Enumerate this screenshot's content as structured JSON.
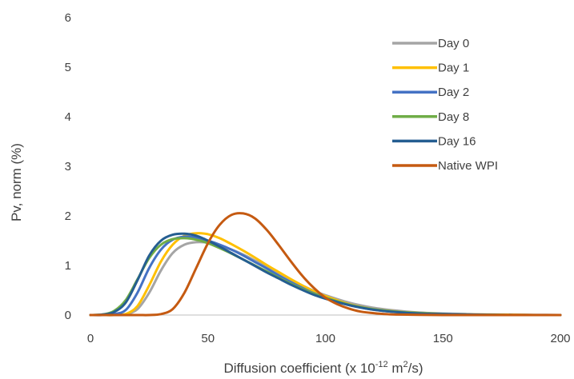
{
  "chart_data": {
    "type": "line",
    "xlabel": {
      "prefix": "Diffusion coefficient (x 10",
      "exp1": "-12",
      "mid": " m",
      "exp2": "2",
      "suffix": "/s)"
    },
    "ylabel": "Pv, norm (%)",
    "xlim": [
      0,
      200
    ],
    "ylim": [
      0,
      6
    ],
    "xticks": [
      0,
      50,
      100,
      150,
      200
    ],
    "yticks": [
      0,
      1,
      2,
      3,
      4,
      5,
      6
    ],
    "grid": false,
    "legend_position": "top-right",
    "series": [
      {
        "name": "Day 0",
        "color": "#A5A5A5",
        "x": [
          0,
          5,
          10,
          15,
          20,
          25,
          30,
          35,
          40,
          45,
          50,
          55,
          60,
          65,
          70,
          75,
          80,
          85,
          90,
          95,
          100,
          110,
          120,
          130,
          140,
          150,
          160,
          170,
          180,
          190,
          200
        ],
        "y": [
          0,
          0,
          0,
          0.02,
          0.12,
          0.45,
          0.9,
          1.25,
          1.42,
          1.47,
          1.46,
          1.4,
          1.32,
          1.22,
          1.1,
          0.98,
          0.85,
          0.72,
          0.6,
          0.49,
          0.4,
          0.25,
          0.15,
          0.09,
          0.05,
          0.03,
          0.02,
          0.01,
          0.01,
          0.005,
          0
        ]
      },
      {
        "name": "Day 1",
        "color": "#FFC000",
        "x": [
          0,
          5,
          10,
          15,
          20,
          25,
          30,
          35,
          40,
          45,
          50,
          55,
          60,
          65,
          70,
          75,
          80,
          85,
          90,
          95,
          100,
          110,
          120,
          130,
          140,
          150,
          160,
          170,
          180,
          190,
          200
        ],
        "y": [
          0,
          0,
          0,
          0.02,
          0.18,
          0.6,
          1.08,
          1.42,
          1.6,
          1.65,
          1.63,
          1.55,
          1.43,
          1.3,
          1.16,
          1.01,
          0.87,
          0.73,
          0.6,
          0.48,
          0.38,
          0.22,
          0.12,
          0.07,
          0.04,
          0.02,
          0.01,
          0.01,
          0.005,
          0,
          0
        ]
      },
      {
        "name": "Day 2",
        "color": "#4472C4",
        "x": [
          0,
          5,
          10,
          15,
          20,
          25,
          30,
          35,
          40,
          45,
          50,
          55,
          60,
          65,
          70,
          75,
          80,
          85,
          90,
          95,
          100,
          110,
          120,
          130,
          140,
          150,
          160,
          170,
          180,
          190,
          200
        ],
        "y": [
          0,
          0,
          0.02,
          0.1,
          0.45,
          0.95,
          1.32,
          1.52,
          1.58,
          1.56,
          1.5,
          1.42,
          1.32,
          1.2,
          1.07,
          0.94,
          0.8,
          0.67,
          0.55,
          0.44,
          0.35,
          0.2,
          0.11,
          0.06,
          0.03,
          0.02,
          0.01,
          0.005,
          0,
          0,
          0
        ]
      },
      {
        "name": "Day 8",
        "color": "#70AD47",
        "x": [
          0,
          5,
          10,
          15,
          20,
          25,
          30,
          35,
          40,
          45,
          50,
          55,
          60,
          65,
          70,
          75,
          80,
          85,
          90,
          95,
          100,
          110,
          120,
          130,
          140,
          150,
          160,
          170,
          180,
          190,
          200
        ],
        "y": [
          0,
          0.01,
          0.08,
          0.3,
          0.72,
          1.15,
          1.42,
          1.53,
          1.55,
          1.52,
          1.45,
          1.35,
          1.24,
          1.12,
          1.0,
          0.88,
          0.76,
          0.64,
          0.53,
          0.43,
          0.35,
          0.21,
          0.12,
          0.07,
          0.04,
          0.02,
          0.01,
          0.005,
          0,
          0,
          0
        ]
      },
      {
        "name": "Day 16",
        "color": "#255E91",
        "x": [
          0,
          5,
          10,
          15,
          20,
          25,
          30,
          35,
          40,
          45,
          50,
          55,
          60,
          65,
          70,
          75,
          80,
          85,
          90,
          95,
          100,
          110,
          120,
          130,
          140,
          150,
          160,
          170,
          180,
          190,
          200
        ],
        "y": [
          0,
          0.01,
          0.06,
          0.25,
          0.7,
          1.2,
          1.5,
          1.62,
          1.64,
          1.6,
          1.5,
          1.38,
          1.25,
          1.12,
          0.99,
          0.86,
          0.74,
          0.62,
          0.51,
          0.41,
          0.33,
          0.2,
          0.11,
          0.06,
          0.03,
          0.02,
          0.01,
          0.005,
          0,
          0,
          0
        ]
      },
      {
        "name": "Native WPI",
        "color": "#C55A11",
        "x": [
          0,
          10,
          20,
          25,
          30,
          35,
          40,
          45,
          50,
          55,
          60,
          65,
          70,
          75,
          80,
          85,
          90,
          95,
          100,
          105,
          110,
          115,
          120,
          125,
          130,
          140,
          150,
          160,
          200
        ],
        "y": [
          0,
          0,
          0,
          0,
          0.02,
          0.12,
          0.45,
          0.95,
          1.45,
          1.82,
          2.02,
          2.05,
          1.95,
          1.72,
          1.42,
          1.1,
          0.8,
          0.55,
          0.35,
          0.22,
          0.13,
          0.07,
          0.04,
          0.02,
          0.01,
          0.005,
          0,
          0,
          0
        ]
      }
    ]
  }
}
